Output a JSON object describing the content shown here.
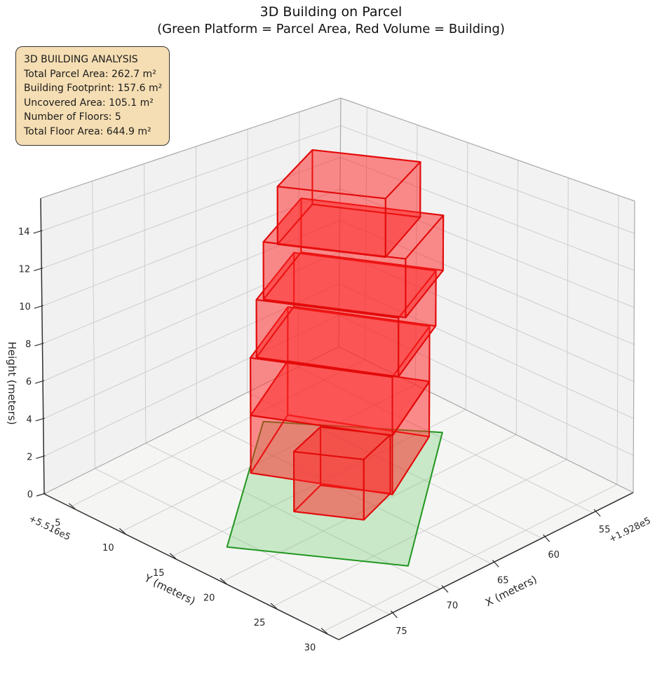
{
  "title": {
    "line1": "3D Building on Parcel",
    "line2": "(Green Platform = Parcel Area, Red Volume = Building)"
  },
  "info_box": {
    "title": "3D BUILDING ANALYSIS",
    "lines": [
      "Total Parcel Area: 262.7 m²",
      "Building Footprint: 157.6 m²",
      "Uncovered Area: 105.1 m²",
      "Number of Floors: 5",
      "Total Floor Area: 644.9 m²"
    ]
  },
  "chart_data": {
    "type": "3d-building-plot",
    "title": "3D Building on Parcel",
    "subtitle": "(Green Platform = Parcel Area, Red Volume = Building)",
    "axes": {
      "x": {
        "label": "X (meters)",
        "ticks": [
          75,
          70,
          65,
          60,
          55
        ],
        "offset_text": "+1.928e5",
        "range": [
          51,
          80
        ]
      },
      "y": {
        "label": "Y (meters)",
        "ticks": [
          5,
          10,
          15,
          20,
          25,
          30
        ],
        "offset_text": "+5.516e5",
        "range": [
          2.4,
          31.6
        ]
      },
      "z": {
        "label": "Height (meters)",
        "ticks": [
          0,
          2,
          4,
          6,
          8,
          10,
          12,
          14
        ],
        "range": [
          0,
          15.75
        ]
      }
    },
    "parcel": {
      "edge_color": "#21971f",
      "fill_color": "rgba(110,205,110,0.32)",
      "polygon": [
        [
          62.1,
          6.1
        ],
        [
          76.3,
          16.8
        ],
        [
          69.3,
          27.7
        ],
        [
          54.4,
          16.1
        ]
      ]
    },
    "building": {
      "edge_color": "#e30b0b",
      "fill_color": "rgba(255,35,35,0.30)",
      "number_of_floors": 5,
      "floor_height_m": 3.15,
      "floors": [
        {
          "z0": 0.0,
          "z1": 3.15,
          "footprint": [
            [
              67.8,
              10.6
            ],
            [
              63.0,
              19.8
            ],
            [
              55.46,
              15.86
            ],
            [
              60.26,
              6.66
            ]
          ]
        },
        {
          "z0": 3.15,
          "z1": 6.3,
          "footprint": [
            [
              67.8,
              10.6
            ],
            [
              63.0,
              19.8
            ],
            [
              55.46,
              15.86
            ],
            [
              60.26,
              6.66
            ]
          ]
        },
        {
          "z0": 6.3,
          "z1": 9.45,
          "footprint": [
            [
              67.45,
              10.85
            ],
            [
              62.65,
              20.05
            ],
            [
              55.11,
              16.11
            ],
            [
              59.91,
              6.91
            ]
          ]
        },
        {
          "z0": 9.45,
          "z1": 12.6,
          "footprint": [
            [
              67.05,
              11.15
            ],
            [
              62.25,
              20.35
            ],
            [
              54.71,
              16.41
            ],
            [
              59.51,
              7.21
            ]
          ]
        },
        {
          "z0": 12.6,
          "z1": 15.75,
          "footprint": [
            [
              66.65,
              12.15
            ],
            [
              63.01,
              19.13
            ],
            [
              56.09,
              15.52
            ],
            [
              59.73,
              8.54
            ]
          ]
        }
      ],
      "entrance": {
        "z0": 0.0,
        "z1": 3.15,
        "footprint": [
          [
            69.5,
            16.6
          ],
          [
            66.9,
            20.9
          ],
          [
            63.0,
            19.6
          ],
          [
            65.6,
            15.3
          ]
        ]
      }
    }
  }
}
